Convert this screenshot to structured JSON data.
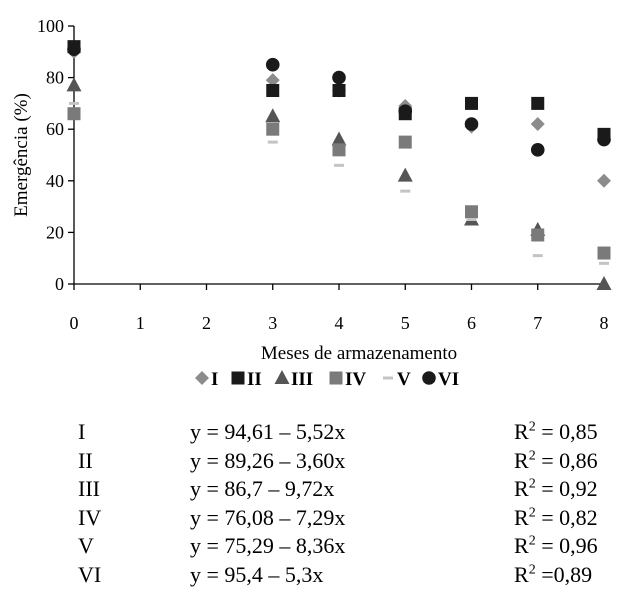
{
  "chart_data": {
    "type": "scatter",
    "xlabel": "Meses de armazenamento",
    "ylabel": "Emergência (%)",
    "xlim": [
      0,
      8
    ],
    "ylim": [
      0,
      100
    ],
    "x_ticks": [
      "0",
      "1",
      "2",
      "3",
      "4",
      "5",
      "6",
      "7",
      "8"
    ],
    "y_ticks": [
      "0",
      "20",
      "40",
      "60",
      "80",
      "100"
    ],
    "grid": false,
    "legend_position": "bottom",
    "series": [
      {
        "name": "I",
        "marker": "diamond",
        "color": "#8c8c8c",
        "x": [
          0,
          3,
          4,
          5,
          6,
          7,
          8
        ],
        "values": [
          90,
          79,
          75,
          69,
          61,
          62,
          40
        ]
      },
      {
        "name": "II",
        "marker": "square",
        "color": "#1a1a1a",
        "x": [
          0,
          3,
          4,
          5,
          6,
          7,
          8
        ],
        "values": [
          92,
          75,
          75,
          66,
          70,
          70,
          58
        ]
      },
      {
        "name": "III",
        "marker": "triangle",
        "color": "#555555",
        "x": [
          0,
          3,
          4,
          5,
          6,
          7,
          8
        ],
        "values": [
          77,
          65,
          56,
          42,
          25,
          21,
          0
        ]
      },
      {
        "name": "IV",
        "marker": "square",
        "color": "#7a7a7a",
        "x": [
          0,
          3,
          4,
          5,
          6,
          7,
          8
        ],
        "values": [
          66,
          60,
          52,
          55,
          28,
          19,
          12
        ]
      },
      {
        "name": "V",
        "marker": "dash",
        "color": "#c4c4c4",
        "x": [
          0,
          3,
          4,
          5,
          6,
          7,
          8
        ],
        "values": [
          70,
          55,
          46,
          36,
          25,
          11,
          8
        ]
      },
      {
        "name": "VI",
        "marker": "circle",
        "color": "#1a1a1a",
        "x": [
          0,
          3,
          4,
          5,
          6,
          7,
          8
        ],
        "values": [
          91,
          85,
          80,
          67,
          62,
          52,
          56
        ]
      }
    ]
  },
  "equations": [
    {
      "name": "I",
      "formula": "y = 94,61 – 5,52x",
      "r2_label": "R",
      "r2_exp": "2",
      "r2_value": " = 0,85"
    },
    {
      "name": "II",
      "formula": "y = 89,26 – 3,60x",
      "r2_label": "R",
      "r2_exp": "2",
      "r2_value": " = 0,86"
    },
    {
      "name": "III",
      "formula": "y = 86,7 – 9,72x",
      "r2_label": "R",
      "r2_exp": "2",
      "r2_value": " = 0,92"
    },
    {
      "name": "IV",
      "formula": "y = 76,08 – 7,29x",
      "r2_label": "R",
      "r2_exp": "2",
      "r2_value": " = 0,82"
    },
    {
      "name": "V",
      "formula": "y = 75,29 – 8,36x",
      "r2_label": "R",
      "r2_exp": "2",
      "r2_value": " = 0,96"
    },
    {
      "name": "VI",
      "formula": "y = 95,4 – 5,3x",
      "r2_label": "R",
      "r2_exp": "2",
      "r2_value": " =0,89"
    }
  ]
}
